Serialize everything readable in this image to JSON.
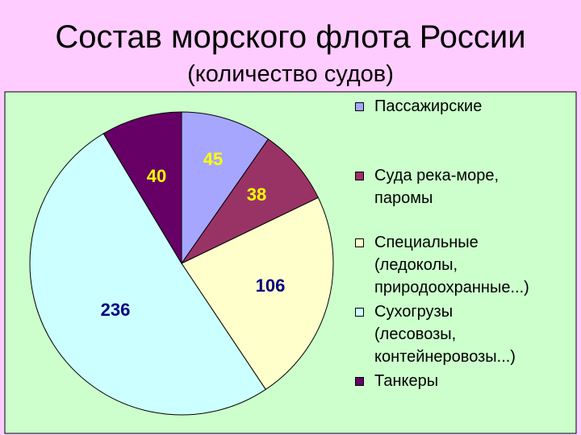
{
  "title": "Состав морского флота России",
  "subtitle": "(количество судов)",
  "colors": {
    "background": "#FFCCFF",
    "chart_area": "#CCFFCC"
  },
  "chart_data": {
    "type": "pie",
    "legend_position": "right",
    "slices": [
      {
        "label": "Пассажирские",
        "value": 45,
        "color": "#A6A6FF",
        "label_color": "#FFFF00"
      },
      {
        "label": "Суда река-море,\nпаромы",
        "value": 38,
        "color": "#993366",
        "label_color": "#FFFF00"
      },
      {
        "label": "Специальные\n(ледоколы,\nприродоохранные...)",
        "value": 106,
        "color": "#FFFFCC",
        "label_color": "#000080"
      },
      {
        "label": "Сухогрузы\n(лесовозы,\nконтейнеровозы...)",
        "value": 236,
        "color": "#CCFFFF",
        "label_color": "#000080"
      },
      {
        "label": "Танкеры",
        "value": 40,
        "color": "#660066",
        "label_color": "#FFFF00"
      }
    ]
  }
}
